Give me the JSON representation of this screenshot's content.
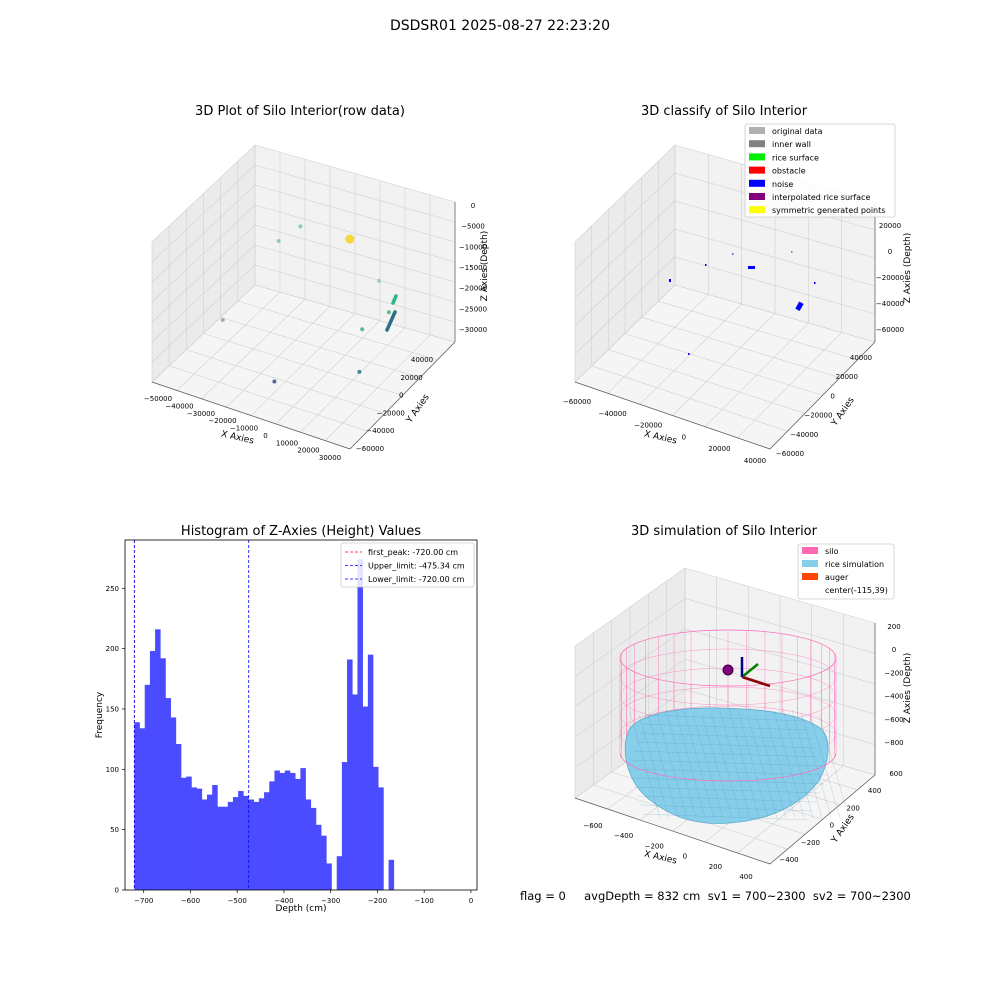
{
  "figure": {
    "suptitle": "DSDSR01 2025-08-27 22:23:20",
    "footer": "flag = 0     avgDepth = 832 cm  sv1 = 700~2300  sv2 = 700~2300"
  },
  "colors": {
    "original_data": "#b0b0b0",
    "inner_wall": "#808080",
    "rice_surface": "#00ee00",
    "obstacle": "#ff0000",
    "noise": "#0000ff",
    "interpolated_rice_surface": "#800080",
    "symmetric_generated_points": "#ffff00",
    "silo": "#ff69b4",
    "rice_simulation": "#87ceeb",
    "auger": "#ff4500",
    "histogram_bar": "#4b4bff"
  },
  "chart_data": [
    {
      "type": "scatter",
      "title": "3D Plot of Silo Interior(row data)",
      "xlabel": "X Axies",
      "ylabel": "Y Axies",
      "zlabel": "Z Axies (Depth)",
      "xticks": [
        "−50000",
        "−40000",
        "−30000",
        "−20000",
        "−10000",
        "0",
        "10000",
        "20000",
        "30000"
      ],
      "yticks": [
        "−60000",
        "−40000",
        "−20000",
        "0",
        "20000",
        "40000"
      ],
      "zticks": [
        "−30000",
        "−25000",
        "−20000",
        "−15000",
        "−10000",
        "−5000",
        "0"
      ],
      "points": [
        {
          "x": 3000,
          "y": 10000,
          "z": -3000,
          "color": "#f5d21c",
          "size": 8
        },
        {
          "x": -28000,
          "y": 30000,
          "z": -10000,
          "color": "#75c9a0",
          "size": 3
        },
        {
          "x": -40000,
          "y": 35000,
          "z": -17000,
          "color": "#75c9a0",
          "size": 3
        },
        {
          "x": 12000,
          "y": 20000,
          "z": -14000,
          "color": "#86d1a8",
          "size": 3
        },
        {
          "x": 25000,
          "y": 0,
          "z": -15000,
          "color": "#3ab882",
          "size": 3
        },
        {
          "x": -42000,
          "y": -20000,
          "z": -25000,
          "color": "#a197c5",
          "size": 3
        },
        {
          "x": -10000,
          "y": -40000,
          "z": -30000,
          "color": "#3c4c8e",
          "size": 3
        },
        {
          "x": 15000,
          "y": -5000,
          "z": -20000,
          "color": "#2db590",
          "size": 3
        },
        {
          "x": 15000,
          "y": -8000,
          "z": -30000,
          "color": "#2f6f85",
          "size": 3
        }
      ]
    },
    {
      "type": "scatter",
      "title": "3D classify of Silo Interior",
      "xlabel": "X Axies",
      "ylabel": "Y Axies",
      "zlabel": "Z Axies (Depth)",
      "xticks": [
        "−60000",
        "−40000",
        "−20000",
        "0",
        "20000",
        "40000"
      ],
      "yticks": [
        "−60000",
        "−40000",
        "−20000",
        "0",
        "20000",
        "40000"
      ],
      "zticks": [
        "−60000",
        "−40000",
        "−20000",
        "0",
        "20000"
      ],
      "legend": [
        {
          "label": "original data",
          "color_key": "original_data"
        },
        {
          "label": "inner wall",
          "color_key": "inner_wall"
        },
        {
          "label": "rice surface",
          "color_key": "rice_surface"
        },
        {
          "label": "obstacle",
          "color_key": "obstacle"
        },
        {
          "label": "noise",
          "color_key": "noise"
        },
        {
          "label": "interpolated rice surface",
          "color_key": "interpolated_rice_surface"
        },
        {
          "label": "symmetric generated points",
          "color_key": "symmetric_generated_points"
        }
      ],
      "legend_loc": "top-right"
    },
    {
      "type": "bar",
      "title": "Histogram of Z-Axies (Height) Values",
      "xlabel": "Depth (cm)",
      "ylabel": "Frequency",
      "xlim": [
        -740,
        13
      ],
      "ylim": [
        0,
        290
      ],
      "xticks": [
        -700,
        -600,
        -500,
        -400,
        -300,
        -200,
        -100,
        0
      ],
      "yticks": [
        0,
        50,
        100,
        150,
        200,
        250
      ],
      "bin_start": -720,
      "bin_width": 11.1,
      "values": [
        139,
        134,
        170,
        198,
        216,
        192,
        159,
        143,
        121,
        93,
        94,
        85,
        84,
        75,
        79,
        87,
        69,
        69,
        73,
        77,
        82,
        78,
        75,
        73,
        76,
        81,
        90,
        99,
        97,
        99,
        97,
        92,
        101,
        75,
        68,
        54,
        45,
        22,
        0,
        28,
        106,
        191,
        162,
        274,
        152,
        195,
        102,
        85,
        0,
        25
      ],
      "lines": [
        {
          "label": "first_peak: -720.00 cm",
          "x": -720,
          "color": "#ff0000"
        },
        {
          "label": "Upper_limit: -475.34 cm",
          "x": -475.34,
          "color": "#0000ff"
        },
        {
          "label": "Lower_limit: -720.00 cm",
          "x": -720,
          "color": "#0000ff"
        }
      ],
      "legend_loc": "top-right"
    },
    {
      "type": "surface",
      "title": "3D simulation of Silo Interior",
      "xlabel": "X Axies",
      "ylabel": "Y Axies",
      "zlabel": "Z Axies (Depth)",
      "xticks": [
        "−600",
        "−400",
        "−200",
        "0",
        "200",
        "400"
      ],
      "yticks": [
        "−400",
        "−200",
        "0",
        "200",
        "400",
        "600"
      ],
      "zticks": [
        "−800",
        "−600",
        "−400",
        "−200",
        "0",
        "200"
      ],
      "legend": [
        {
          "label": "silo",
          "color_key": "silo"
        },
        {
          "label": "rice simulation",
          "color_key": "rice_simulation"
        },
        {
          "label": "auger",
          "color_key": "auger"
        },
        {
          "label": "center(-115,39)",
          "color_key": ""
        }
      ],
      "legend_loc": "top-right"
    }
  ]
}
